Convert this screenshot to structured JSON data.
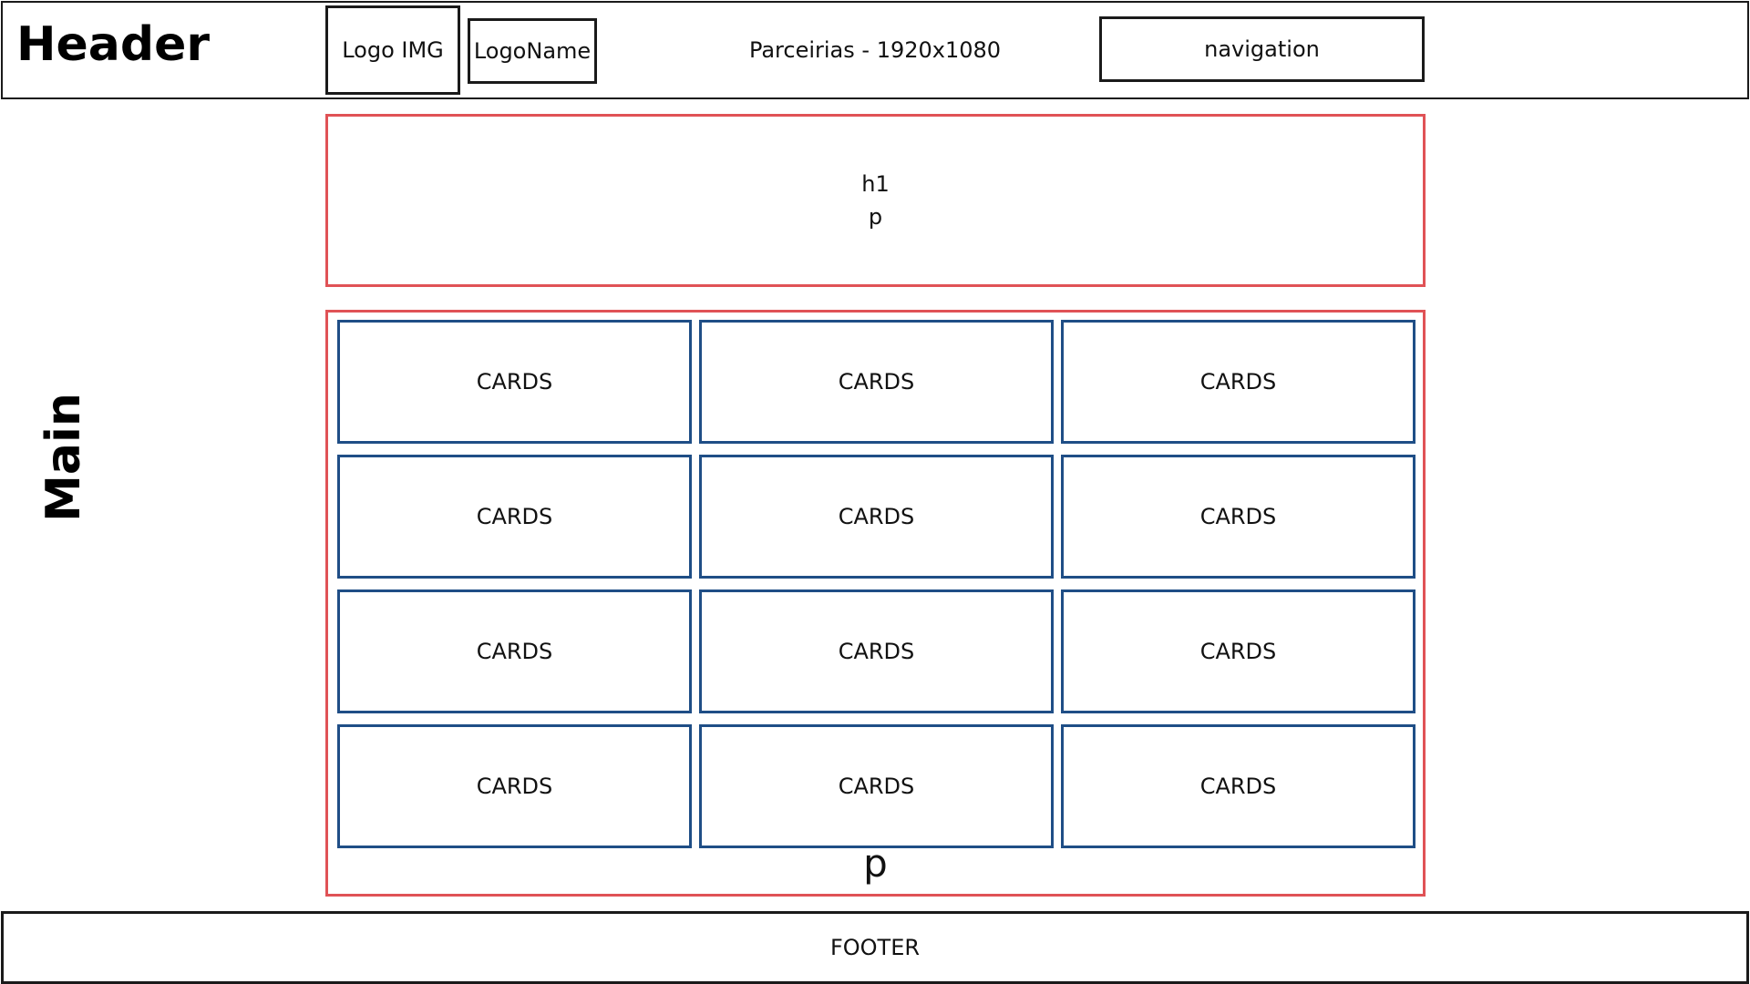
{
  "header": {
    "label": "Header",
    "logo_img": "Logo IMG",
    "logo_name": "LogoName",
    "page_title": "Parceirias - 1920x1080",
    "navigation": "navigation"
  },
  "main": {
    "label": "Main",
    "intro": {
      "heading": "h1",
      "paragraph": "p"
    },
    "cards": [
      "CARDS",
      "CARDS",
      "CARDS",
      "CARDS",
      "CARDS",
      "CARDS",
      "CARDS",
      "CARDS",
      "CARDS",
      "CARDS",
      "CARDS",
      "CARDS"
    ],
    "cards_paragraph": "p"
  },
  "footer": {
    "label": "FOOTER"
  },
  "colors": {
    "section_border": "#e05256",
    "card_border": "#1f4e86",
    "box_border": "#1a1a1a"
  }
}
